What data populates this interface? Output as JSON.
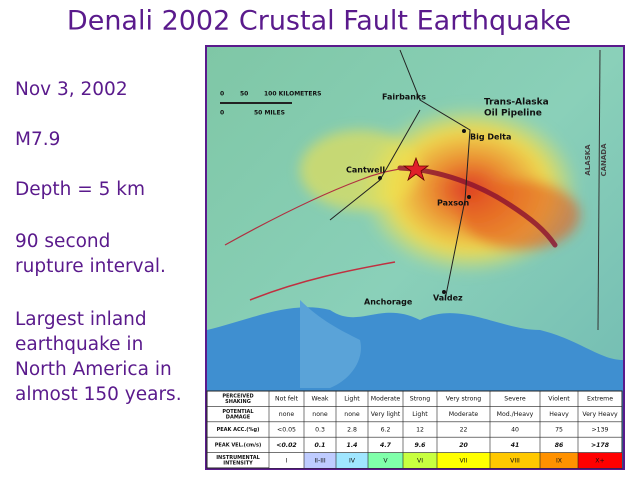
{
  "title": "Denali 2002 Crustal Fault Earthquake",
  "sidebar": [
    [
      "Nov 3, 2002"
    ],
    [
      "M7.9"
    ],
    [
      "Depth = 5 km"
    ],
    [
      "90 second",
      "rupture interval."
    ],
    [
      "Largest inland",
      "earthquake in",
      "North America in",
      "almost 150 years."
    ]
  ],
  "map": {
    "scale_km": [
      "0",
      "50",
      "100 KILOMETERS"
    ],
    "scale_mi": [
      "0",
      "50 MILES"
    ],
    "places": [
      "Fairbanks",
      "Big Delta",
      "Cantwell",
      "Paxson",
      "Anchorage",
      "Valdez"
    ],
    "pipeline": [
      "Trans-Alaska",
      "Oil Pipeline"
    ],
    "borders": [
      "ALASKA",
      "CANADA"
    ]
  },
  "legend": {
    "rows": [
      {
        "head": [
          "PERCEIVED",
          "SHAKING"
        ],
        "cells": [
          "Not felt",
          "Weak",
          "Light",
          "Moderate",
          "Strong",
          "Very strong",
          "Severe",
          "Violent",
          "Extreme"
        ]
      },
      {
        "head": [
          "POTENTIAL",
          "DAMAGE"
        ],
        "cells": [
          "none",
          "none",
          "none",
          "Very light",
          "Light",
          "Moderate",
          "Mod./Heavy",
          "Heavy",
          "Very Heavy"
        ]
      },
      {
        "head": [
          "PEAK ACC.(%g)"
        ],
        "cells": [
          "<0.05",
          "0.3",
          "2.8",
          "6.2",
          "12",
          "22",
          "40",
          "75",
          ">139"
        ]
      },
      {
        "head": [
          "PEAK VEL.(cm/s)"
        ],
        "cells": [
          "<0.02",
          "0.1",
          "1.4",
          "4.7",
          "9.6",
          "20",
          "41",
          "86",
          ">178"
        ]
      },
      {
        "head": [
          "INSTRUMENTAL",
          "INTENSITY"
        ],
        "cells": [
          "I",
          "II-III",
          "IV",
          "V",
          "VI",
          "VII",
          "VIII",
          "IX",
          "X+"
        ]
      }
    ]
  }
}
